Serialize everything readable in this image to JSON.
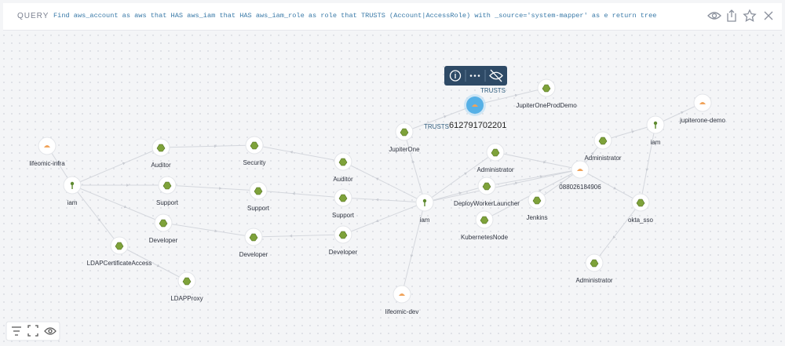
{
  "header": {
    "label": "QUERY",
    "query": "Find aws_account as aws that HAS aws_iam that HAS aws_iam_role as role that TRUSTS (Account|AccessRole) with _source='system-mapper' as e return tree"
  },
  "nodes": [
    {
      "label": "lifeomic-infra"
    },
    {
      "label": "iam"
    },
    {
      "label": "Auditor"
    },
    {
      "label": "Support"
    },
    {
      "label": "Developer"
    },
    {
      "label": "LDAPCertificateAccess"
    },
    {
      "label": "LDAPProxy"
    },
    {
      "label": "Security"
    },
    {
      "label": "Support"
    },
    {
      "label": "Developer"
    },
    {
      "label": "Auditor"
    },
    {
      "label": "Support"
    },
    {
      "label": "Developer"
    },
    {
      "label": "iam"
    },
    {
      "label": "JupiterOne"
    },
    {
      "label": "612791702201"
    },
    {
      "label": "JupiterOneProdDemo"
    },
    {
      "label": "Administrator"
    },
    {
      "label": "DeployWorkerLauncher"
    },
    {
      "label": "KubernetesNode"
    },
    {
      "label": "Jenkins"
    },
    {
      "label": "088026184906"
    },
    {
      "label": "Administrator"
    },
    {
      "label": "iam"
    },
    {
      "label": "jupiterone-demo"
    },
    {
      "label": "okta_sso"
    },
    {
      "label": "Administrator"
    },
    {
      "label": "lifeomic-dev"
    }
  ],
  "edge_labels": [
    "TRUSTS",
    "TRUSTS"
  ]
}
